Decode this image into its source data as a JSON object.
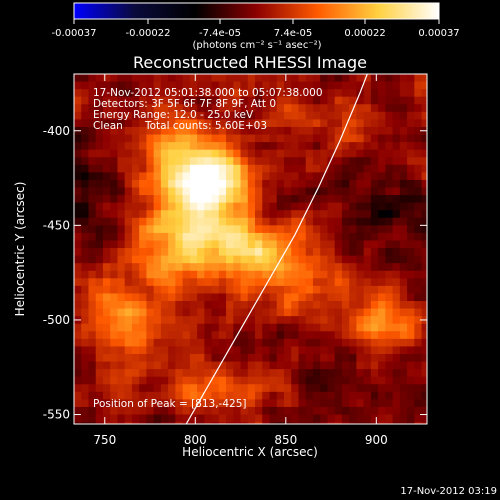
{
  "chart_data": {
    "type": "heatmap",
    "title": "Reconstructed RHESSI Image",
    "colorbar": {
      "ticks": [
        "-0.00037",
        "-0.00022",
        "-7.4e-05",
        "7.4e-05",
        "0.00022",
        "0.00037"
      ],
      "tick_values": [
        -0.00037,
        -0.00022,
        -7.4e-05,
        7.4e-05,
        0.00022,
        0.00037
      ],
      "vmin": -0.00037,
      "vmax": 0.00037,
      "unit_label": "(photons cm⁻² s⁻¹ asec⁻²)",
      "colors": [
        "#0000ff",
        "#0a0a3c",
        "#000000",
        "#8c0000",
        "#ff5a00",
        "#ffd040",
        "#ffffff"
      ]
    },
    "xlabel": "Heliocentric X (arcsec)",
    "ylabel": "Heliocentric Y (arcsec)",
    "xlim": [
      733,
      928
    ],
    "ylim": [
      -555,
      -370
    ],
    "xticks": [
      750,
      800,
      850,
      900
    ],
    "yticks": [
      -550,
      -500,
      -450,
      -400
    ],
    "xtick_labels": [
      "750",
      "800",
      "850",
      "900"
    ],
    "ytick_labels": [
      "-550",
      "-500",
      "-450",
      "-400"
    ],
    "annotations": {
      "line1": "17-Nov-2012 05:01:38.000 to 05:07:38.000",
      "line2": "Detectors: 3F 5F 6F 7F 8F 9F, Att 0",
      "line3": "Energy Range: 12.0 - 25.0 keV",
      "line4_a": "Clean",
      "line4_b": "Total counts: 5.60E+03",
      "peak": "Position of Peak = [813,-425]"
    },
    "peak": [
      813,
      -425
    ],
    "limb_curve": [
      [
        795,
        -555
      ],
      [
        810,
        -530
      ],
      [
        825,
        -505
      ],
      [
        840,
        -480
      ],
      [
        855,
        -455
      ],
      [
        868,
        -430
      ],
      [
        880,
        -405
      ],
      [
        891,
        -380
      ],
      [
        895,
        -370
      ]
    ],
    "sources": [
      {
        "x": 808,
        "y": -428,
        "amp": 0.00037,
        "sx": 14,
        "sy": 12
      },
      {
        "x": 790,
        "y": -420,
        "amp": 0.00018,
        "sx": 16,
        "sy": 18
      },
      {
        "x": 815,
        "y": -455,
        "amp": 0.0002,
        "sx": 26,
        "sy": 10
      },
      {
        "x": 785,
        "y": -470,
        "amp": 0.00015,
        "sx": 20,
        "sy": 14
      },
      {
        "x": 835,
        "y": -470,
        "amp": 0.00016,
        "sx": 18,
        "sy": 10
      },
      {
        "x": 760,
        "y": -500,
        "amp": 0.00016,
        "sx": 14,
        "sy": 12
      },
      {
        "x": 905,
        "y": -500,
        "amp": 0.00017,
        "sx": 14,
        "sy": 12
      },
      {
        "x": 820,
        "y": -535,
        "amp": 0.00014,
        "sx": 30,
        "sy": 8
      },
      {
        "x": 865,
        "y": -485,
        "amp": 0.00011,
        "sx": 18,
        "sy": 10
      },
      {
        "x": 875,
        "y": -400,
        "amp": 7e-05,
        "sx": 22,
        "sy": 14
      },
      {
        "x": 905,
        "y": -440,
        "amp": -7e-05,
        "sx": 20,
        "sy": 25
      },
      {
        "x": 750,
        "y": -440,
        "amp": -8e-05,
        "sx": 12,
        "sy": 20
      },
      {
        "x": 870,
        "y": -530,
        "amp": -6e-05,
        "sx": 25,
        "sy": 15
      }
    ],
    "noise_seed": 7,
    "noise_amp": 6e-05
  },
  "footer": {
    "timestamp": "17-Nov-2012 03:19"
  }
}
